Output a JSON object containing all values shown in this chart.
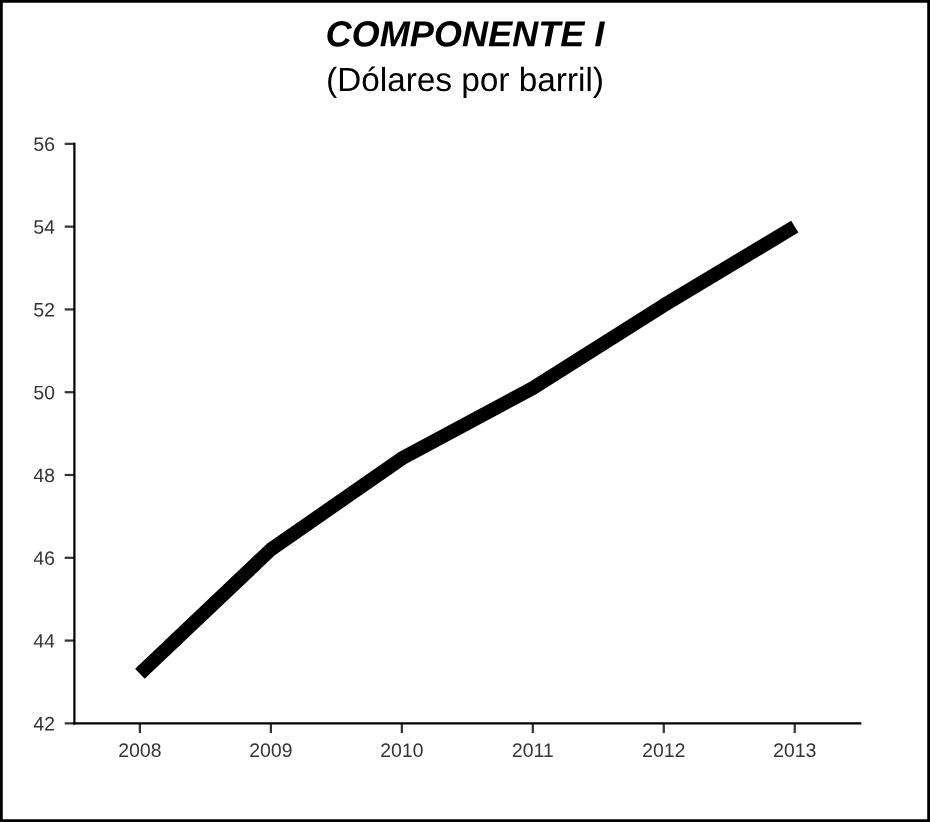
{
  "chart_data": {
    "type": "line",
    "title": "COMPONENTE I",
    "subtitle": "(Dólares por barril)",
    "categories": [
      "2008",
      "2009",
      "2010",
      "2011",
      "2012",
      "2013"
    ],
    "series": [
      {
        "color": "#000000",
        "values": [
          43.2,
          46.2,
          48.4,
          50.1,
          52.1,
          54.0
        ]
      }
    ],
    "ylim": [
      42,
      56
    ],
    "yticks": [
      42,
      44,
      46,
      48,
      50,
      52,
      54,
      56
    ],
    "grid": false,
    "legend": false,
    "marker": "none",
    "line_style": "solid"
  }
}
